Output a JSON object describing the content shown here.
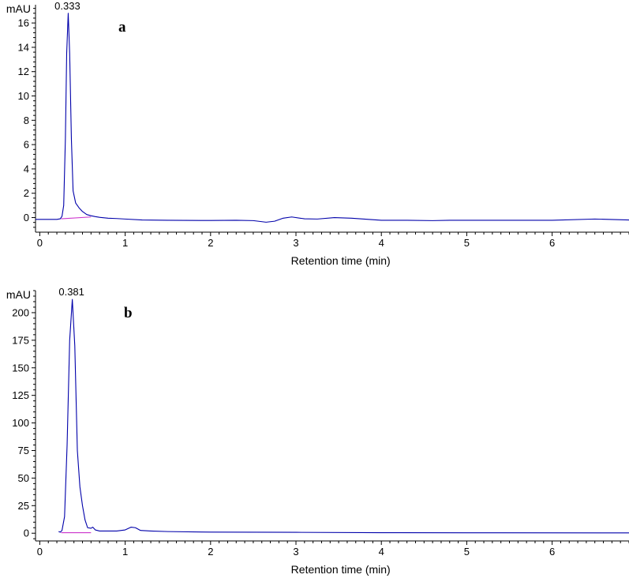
{
  "chart_data": [
    {
      "type": "line",
      "panel_label": "a",
      "ylabel": "mAU",
      "xlabel": "Retention time (min)",
      "xlim": [
        -0.05,
        6.9
      ],
      "ylim": [
        -1.2,
        17.5
      ],
      "x_ticks": [
        0,
        1,
        2,
        3,
        4,
        5,
        6
      ],
      "y_ticks": [
        0,
        2,
        4,
        6,
        8,
        10,
        12,
        14,
        16
      ],
      "grid": false,
      "peak_label": {
        "text": "0.333",
        "x": 0.333,
        "y": 16.8
      },
      "series": [
        {
          "color": "#0000aa",
          "points": [
            [
              -0.05,
              -0.15
            ],
            [
              0.2,
              -0.15
            ],
            [
              0.24,
              -0.1
            ],
            [
              0.26,
              0.1
            ],
            [
              0.28,
              1.0
            ],
            [
              0.3,
              6.5
            ],
            [
              0.315,
              13.5
            ],
            [
              0.333,
              16.8
            ],
            [
              0.35,
              13.5
            ],
            [
              0.37,
              6.5
            ],
            [
              0.39,
              2.2
            ],
            [
              0.42,
              1.2
            ],
            [
              0.46,
              0.8
            ],
            [
              0.5,
              0.5
            ],
            [
              0.55,
              0.25
            ],
            [
              0.6,
              0.15
            ],
            [
              0.65,
              0.08
            ],
            [
              0.7,
              0.02
            ],
            [
              0.8,
              -0.05
            ],
            [
              0.9,
              -0.08
            ],
            [
              1.0,
              -0.12
            ],
            [
              1.2,
              -0.2
            ],
            [
              1.5,
              -0.22
            ],
            [
              2.0,
              -0.24
            ],
            [
              2.3,
              -0.22
            ],
            [
              2.5,
              -0.25
            ],
            [
              2.65,
              -0.38
            ],
            [
              2.75,
              -0.3
            ],
            [
              2.85,
              -0.05
            ],
            [
              2.95,
              0.05
            ],
            [
              3.1,
              -0.1
            ],
            [
              3.25,
              -0.12
            ],
            [
              3.45,
              0.0
            ],
            [
              3.65,
              -0.05
            ],
            [
              3.85,
              -0.15
            ],
            [
              4.0,
              -0.22
            ],
            [
              4.3,
              -0.22
            ],
            [
              4.6,
              -0.25
            ],
            [
              4.8,
              -0.22
            ],
            [
              5.0,
              -0.22
            ],
            [
              5.5,
              -0.22
            ],
            [
              6.0,
              -0.22
            ],
            [
              6.5,
              -0.12
            ],
            [
              6.9,
              -0.2
            ]
          ]
        },
        {
          "color": "#cc33cc",
          "points": [
            [
              0.25,
              -0.1
            ],
            [
              0.6,
              0.05
            ]
          ]
        }
      ]
    },
    {
      "type": "line",
      "panel_label": "b",
      "ylabel": "mAU",
      "xlabel": "Retention time (min)",
      "xlim": [
        -0.05,
        6.9
      ],
      "ylim": [
        -7,
        220
      ],
      "x_ticks": [
        0,
        1,
        2,
        3,
        4,
        5,
        6
      ],
      "y_ticks": [
        0,
        25,
        50,
        75,
        100,
        125,
        150,
        175,
        200
      ],
      "grid": false,
      "peak_label": {
        "text": "0.381",
        "x": 0.381,
        "y": 212
      },
      "series": [
        {
          "color": "#0000aa",
          "points": [
            [
              0.22,
              1.5
            ],
            [
              0.24,
              1.0
            ],
            [
              0.26,
              2.5
            ],
            [
              0.29,
              15
            ],
            [
              0.32,
              80
            ],
            [
              0.35,
              175
            ],
            [
              0.381,
              212
            ],
            [
              0.41,
              170
            ],
            [
              0.44,
              75
            ],
            [
              0.47,
              42
            ],
            [
              0.5,
              25
            ],
            [
              0.53,
              12
            ],
            [
              0.56,
              5
            ],
            [
              0.6,
              4.5
            ],
            [
              0.62,
              5.5
            ],
            [
              0.65,
              3
            ],
            [
              0.7,
              2
            ],
            [
              0.8,
              2
            ],
            [
              0.9,
              2
            ],
            [
              1.0,
              3
            ],
            [
              1.07,
              5.5
            ],
            [
              1.12,
              5.0
            ],
            [
              1.18,
              2.5
            ],
            [
              1.3,
              2
            ],
            [
              1.5,
              1.5
            ],
            [
              2.0,
              1
            ],
            [
              3.0,
              0.8
            ],
            [
              4.0,
              0.5
            ],
            [
              5.0,
              0.4
            ],
            [
              6.9,
              0.3
            ]
          ]
        },
        {
          "color": "#cc33cc",
          "points": [
            [
              0.25,
              0.5
            ],
            [
              0.6,
              0.5
            ]
          ]
        }
      ]
    }
  ]
}
